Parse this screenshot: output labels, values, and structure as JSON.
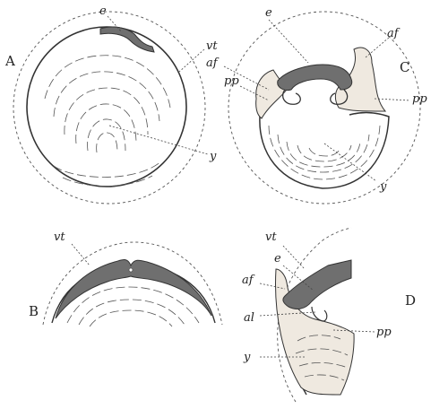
{
  "figure": {
    "panels": {
      "A": {
        "letter": "A",
        "labels": {
          "e": "e",
          "vt": "vt",
          "y": "y"
        }
      },
      "B": {
        "letter": "B",
        "labels": {
          "vt": "vt"
        }
      },
      "C": {
        "letter": "C",
        "labels": {
          "e": "e",
          "af_left": "af",
          "af_right": "af",
          "pp_left": "pp",
          "pp_right": "pp",
          "y": "y"
        }
      },
      "D": {
        "letter": "D",
        "labels": {
          "vt": "vt",
          "e": "e",
          "af": "af",
          "al": "al",
          "pp": "pp",
          "y": "y"
        }
      }
    }
  }
}
